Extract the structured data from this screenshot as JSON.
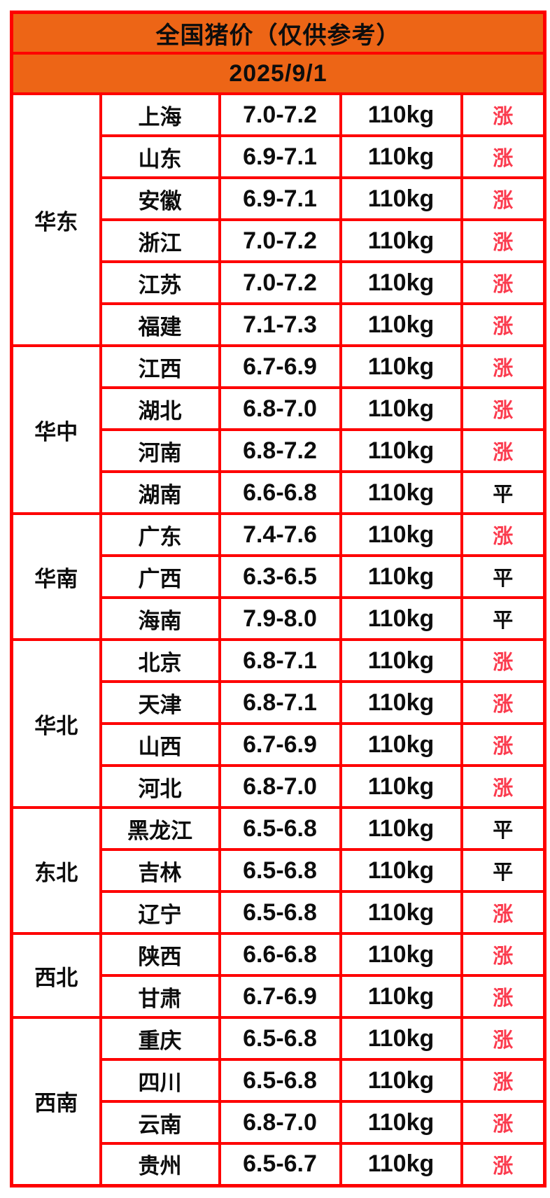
{
  "colors": {
    "header_bg": "#ED6516",
    "table_border": "#FE0000",
    "trend_up_color": "#FB3B4E",
    "trend_flat_color": "#0D0D0D",
    "page_bg": "#FFFFFF"
  },
  "header": {
    "title": "全国猪价（仅供参考）",
    "date": "2025/9/1"
  },
  "chart_data": {
    "type": "table",
    "title": "全国猪价（仅供参考）",
    "date": "2025/9/1",
    "row_count": 26,
    "trend_up_label": "涨",
    "trend_flat_label": "平",
    "regions": [
      {
        "name": "华东",
        "rows": [
          {
            "province": "上海",
            "price": "7.0-7.2",
            "weight": "110kg",
            "trend": "涨"
          },
          {
            "province": "山东",
            "price": "6.9-7.1",
            "weight": "110kg",
            "trend": "涨"
          },
          {
            "province": "安徽",
            "price": "6.9-7.1",
            "weight": "110kg",
            "trend": "涨"
          },
          {
            "province": "浙江",
            "price": "7.0-7.2",
            "weight": "110kg",
            "trend": "涨"
          },
          {
            "province": "江苏",
            "price": "7.0-7.2",
            "weight": "110kg",
            "trend": "涨"
          },
          {
            "province": "福建",
            "price": "7.1-7.3",
            "weight": "110kg",
            "trend": "涨"
          }
        ]
      },
      {
        "name": "华中",
        "rows": [
          {
            "province": "江西",
            "price": "6.7-6.9",
            "weight": "110kg",
            "trend": "涨"
          },
          {
            "province": "湖北",
            "price": "6.8-7.0",
            "weight": "110kg",
            "trend": "涨"
          },
          {
            "province": "河南",
            "price": "6.8-7.2",
            "weight": "110kg",
            "trend": "涨"
          },
          {
            "province": "湖南",
            "price": "6.6-6.8",
            "weight": "110kg",
            "trend": "平"
          }
        ]
      },
      {
        "name": "华南",
        "rows": [
          {
            "province": "广东",
            "price": "7.4-7.6",
            "weight": "110kg",
            "trend": "涨"
          },
          {
            "province": "广西",
            "price": "6.3-6.5",
            "weight": "110kg",
            "trend": "平"
          },
          {
            "province": "海南",
            "price": "7.9-8.0",
            "weight": "110kg",
            "trend": "平"
          }
        ]
      },
      {
        "name": "华北",
        "rows": [
          {
            "province": "北京",
            "price": "6.8-7.1",
            "weight": "110kg",
            "trend": "涨"
          },
          {
            "province": "天津",
            "price": "6.8-7.1",
            "weight": "110kg",
            "trend": "涨"
          },
          {
            "province": "山西",
            "price": "6.7-6.9",
            "weight": "110kg",
            "trend": "涨"
          },
          {
            "province": "河北",
            "price": "6.8-7.0",
            "weight": "110kg",
            "trend": "涨"
          }
        ]
      },
      {
        "name": "东北",
        "rows": [
          {
            "province": "黑龙江",
            "price": "6.5-6.8",
            "weight": "110kg",
            "trend": "平"
          },
          {
            "province": "吉林",
            "price": "6.5-6.8",
            "weight": "110kg",
            "trend": "平"
          },
          {
            "province": "辽宁",
            "price": "6.5-6.8",
            "weight": "110kg",
            "trend": "涨"
          }
        ]
      },
      {
        "name": "西北",
        "rows": [
          {
            "province": "陕西",
            "price": "6.6-6.8",
            "weight": "110kg",
            "trend": "涨"
          },
          {
            "province": "甘肃",
            "price": "6.7-6.9",
            "weight": "110kg",
            "trend": "涨"
          }
        ]
      },
      {
        "name": "西南",
        "rows": [
          {
            "province": "重庆",
            "price": "6.5-6.8",
            "weight": "110kg",
            "trend": "涨"
          },
          {
            "province": "四川",
            "price": "6.5-6.8",
            "weight": "110kg",
            "trend": "涨"
          },
          {
            "province": "云南",
            "price": "6.8-7.0",
            "weight": "110kg",
            "trend": "涨"
          },
          {
            "province": "贵州",
            "price": "6.5-6.7",
            "weight": "110kg",
            "trend": "涨"
          }
        ]
      }
    ]
  }
}
